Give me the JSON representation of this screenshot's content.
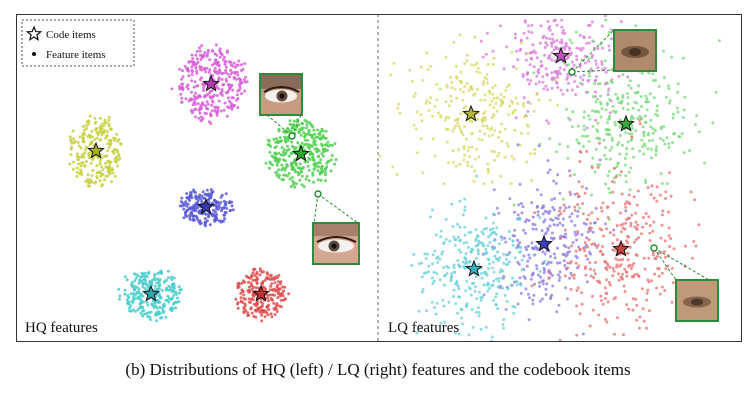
{
  "caption": "(b) Distributions of HQ (left) / LQ (right) features and the codebook items",
  "legend": {
    "code_label": "Code items",
    "feature_label": "Feature items"
  },
  "chart_data": [
    {
      "type": "scatter",
      "panel_label": "HQ features",
      "legend_placement": "top-left",
      "grid": false,
      "clusters": [
        {
          "color": "#d860d8",
          "star_color": "#b040b0",
          "center": [
            195,
            70
          ],
          "spread": [
            40,
            42
          ],
          "n": 320
        },
        {
          "color": "#c8d040",
          "star_color": "#a8b028",
          "center": [
            80,
            137
          ],
          "spread": [
            30,
            40
          ],
          "n": 230
        },
        {
          "color": "#50d050",
          "star_color": "#30a830",
          "center": [
            285,
            140
          ],
          "spread": [
            38,
            36
          ],
          "n": 320
        },
        {
          "color": "#5a5ad8",
          "star_color": "#3838b0",
          "center": [
            190,
            193
          ],
          "spread": [
            30,
            20
          ],
          "n": 200
        },
        {
          "color": "#48cccc",
          "star_color": "#30a8b0",
          "center": [
            135,
            280
          ],
          "spread": [
            34,
            28
          ],
          "n": 240
        },
        {
          "color": "#e05050",
          "star_color": "#c03030",
          "center": [
            245,
            280
          ],
          "spread": [
            30,
            28
          ],
          "n": 230
        }
      ],
      "insets": [
        {
          "type": "eye-icon"
        },
        {
          "type": "eye-icon"
        }
      ]
    },
    {
      "type": "scatter",
      "panel_label": "LQ features",
      "legend_placement": "none",
      "grid": false,
      "clusters": [
        {
          "color": "#d878d8",
          "star_color": "#c050c0",
          "center": [
            545,
            42
          ],
          "spread": [
            55,
            45
          ],
          "n": 260
        },
        {
          "color": "#d8d860",
          "star_color": "#b8b838",
          "center": [
            455,
            100
          ],
          "spread": [
            55,
            60
          ],
          "n": 260
        },
        {
          "color": "#78d878",
          "star_color": "#38a838",
          "center": [
            610,
            110
          ],
          "spread": [
            60,
            70
          ],
          "n": 300
        },
        {
          "color": "#8a78e0",
          "star_color": "#4040c0",
          "center": [
            528,
            230
          ],
          "spread": [
            45,
            60
          ],
          "n": 260
        },
        {
          "color": "#68d0d8",
          "star_color": "#38b0c0",
          "center": [
            458,
            255
          ],
          "spread": [
            50,
            55
          ],
          "n": 300
        },
        {
          "color": "#e87070",
          "star_color": "#d04040",
          "center": [
            605,
            235
          ],
          "spread": [
            55,
            75
          ],
          "n": 320
        }
      ],
      "insets": [
        {
          "type": "eye-icon"
        },
        {
          "type": "eye-icon"
        }
      ]
    }
  ]
}
